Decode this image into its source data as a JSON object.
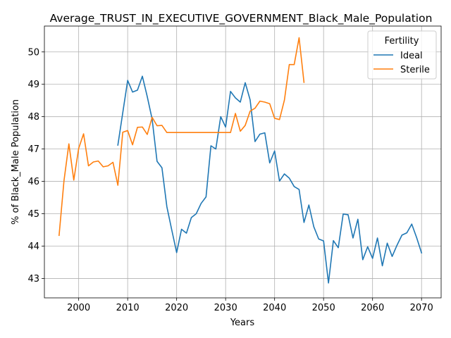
{
  "chart_data": {
    "type": "line",
    "title": "Average_TRUST_IN_EXECUTIVE_GOVERNMENT_Black_Male_Population",
    "xlabel": "Years",
    "ylabel": "% of Black_Male Population",
    "xlim": [
      1993,
      2074
    ],
    "ylim": [
      42.4,
      50.8
    ],
    "xticks": [
      2000,
      2010,
      2020,
      2030,
      2040,
      2050,
      2060,
      2070
    ],
    "yticks": [
      43,
      44,
      45,
      46,
      47,
      48,
      49,
      50
    ],
    "grid": true,
    "legend": {
      "title": "Fertility",
      "placement": "top-right"
    },
    "series": [
      {
        "name": "Ideal",
        "color": "#1f77b4",
        "x": [
          2008,
          2009,
          2010,
          2011,
          2012,
          2013,
          2014,
          2015,
          2016,
          2017,
          2018,
          2019,
          2020,
          2021,
          2022,
          2023,
          2024,
          2025,
          2026,
          2027,
          2028,
          2029,
          2030,
          2031,
          2032,
          2033,
          2034,
          2035,
          2036,
          2037,
          2038,
          2039,
          2040,
          2041,
          2042,
          2043,
          2044,
          2045,
          2046,
          2047,
          2048,
          2049,
          2050,
          2051,
          2052,
          2053,
          2054,
          2055,
          2056,
          2057,
          2058,
          2059,
          2060,
          2061,
          2062,
          2063,
          2064,
          2065,
          2066,
          2067,
          2068,
          2069,
          2070
        ],
        "y": [
          47.12,
          48.12,
          49.12,
          48.76,
          48.82,
          49.25,
          48.62,
          47.92,
          46.62,
          46.42,
          45.22,
          44.5,
          43.8,
          44.52,
          44.4,
          44.88,
          45.0,
          45.32,
          45.52,
          47.1,
          47.0,
          48.0,
          47.68,
          48.78,
          48.58,
          48.45,
          49.05,
          48.52,
          47.23,
          47.46,
          47.5,
          46.57,
          46.94,
          46.01,
          46.23,
          46.1,
          45.84,
          45.75,
          44.73,
          45.27,
          44.6,
          44.22,
          44.16,
          42.86,
          44.17,
          43.95,
          44.99,
          44.97,
          44.25,
          44.83,
          43.58,
          43.98,
          43.62,
          44.25,
          43.39,
          44.09,
          43.68,
          44.03,
          44.34,
          44.41,
          44.68,
          44.26,
          43.79
        ]
      },
      {
        "name": "Sterile",
        "color": "#ff7f0e",
        "x": [
          1996,
          1997,
          1998,
          1999,
          2000,
          2001,
          2002,
          2003,
          2004,
          2005,
          2006,
          2007,
          2008,
          2009,
          2010,
          2011,
          2012,
          2013,
          2014,
          2015,
          2016,
          2017,
          2018,
          2019,
          2020,
          2021,
          2022,
          2023,
          2024,
          2025,
          2026,
          2027,
          2028,
          2029,
          2030,
          2031,
          2032,
          2033,
          2034,
          2035,
          2036,
          2037,
          2038,
          2039,
          2040,
          2041,
          2042,
          2043,
          2044,
          2045,
          2046
        ],
        "y": [
          44.33,
          46.02,
          47.16,
          46.04,
          47.02,
          47.47,
          46.48,
          46.6,
          46.63,
          46.45,
          46.48,
          46.59,
          45.88,
          47.52,
          47.57,
          47.13,
          47.67,
          47.68,
          47.45,
          47.98,
          47.72,
          47.73,
          47.51,
          47.51,
          47.51,
          47.51,
          47.51,
          47.51,
          47.51,
          47.51,
          47.51,
          47.51,
          47.51,
          47.51,
          47.51,
          47.51,
          48.1,
          47.55,
          47.73,
          48.17,
          48.26,
          48.48,
          48.45,
          48.4,
          47.95,
          47.91,
          48.51,
          49.61,
          49.61,
          50.44,
          49.06
        ]
      }
    ]
  }
}
